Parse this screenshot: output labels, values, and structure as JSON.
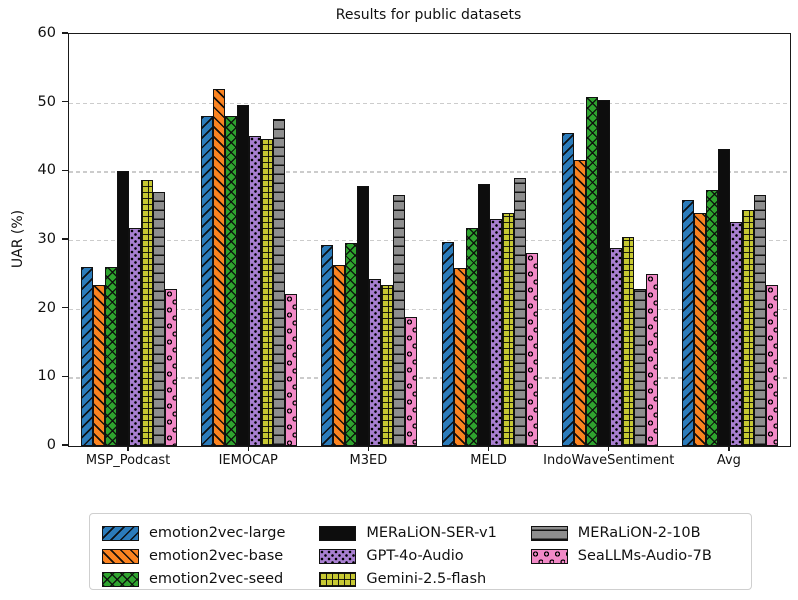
{
  "chart_data": {
    "type": "bar",
    "title": "Results for public datasets",
    "xlabel": "",
    "ylabel": "UAR (%)",
    "ylim": [
      0,
      60
    ],
    "yticks": [
      0,
      10,
      20,
      30,
      40,
      50,
      60
    ],
    "grid": "horizontal-dashed",
    "grid_color": "#cccccc",
    "bar_edge_color": "#111111",
    "legend_position": "below-center",
    "legend_columns": 3,
    "categories": [
      "MSP_Podcast",
      "IEMOCAP",
      "M3ED",
      "MELD",
      "IndoWaveSentiment",
      "Avg"
    ],
    "series": [
      {
        "name": "emotion2vec-large",
        "color": "#2b7bba",
        "hatch": "/",
        "values": [
          26.1,
          48.1,
          29.3,
          29.7,
          45.6,
          35.8
        ]
      },
      {
        "name": "emotion2vec-base",
        "color": "#fb8320",
        "hatch": "\\",
        "values": [
          23.4,
          52.0,
          26.4,
          25.9,
          41.7,
          33.9
        ]
      },
      {
        "name": "emotion2vec-seed",
        "color": "#2fa42f",
        "hatch": "x",
        "values": [
          26.0,
          48.1,
          29.6,
          31.8,
          50.8,
          37.3
        ]
      },
      {
        "name": "MERaLiON-SER-v1",
        "color": "#0d0d0d",
        "hatch": "",
        "values": [
          40.0,
          49.7,
          37.8,
          38.1,
          50.4,
          43.2
        ]
      },
      {
        "name": "GPT-4o-Audio",
        "color": "#a87fd0",
        "hatch": ".",
        "values": [
          31.8,
          45.1,
          24.3,
          33.0,
          28.9,
          32.6
        ]
      },
      {
        "name": "Gemini-2.5-flash",
        "color": "#c6c832",
        "hatch": "+",
        "values": [
          38.8,
          44.7,
          23.4,
          34.0,
          30.4,
          34.3
        ]
      },
      {
        "name": "MERaLiON-2-10B",
        "color": "#8e8e8e",
        "hatch": "-",
        "values": [
          37.0,
          47.6,
          36.5,
          39.1,
          22.9,
          36.6
        ]
      },
      {
        "name": "SeaLLMs-Audio-7B",
        "color": "#f189c6",
        "hatch": "o",
        "values": [
          22.9,
          22.2,
          18.8,
          28.1,
          25.0,
          23.4
        ]
      }
    ]
  }
}
